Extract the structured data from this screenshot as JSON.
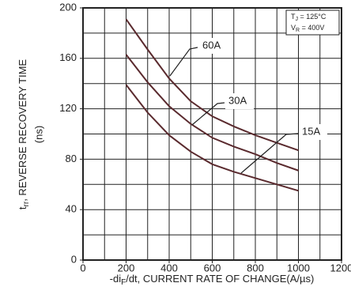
{
  "chart_data": {
    "type": "line",
    "x_label": {
      "pre": "-di",
      "sub": "F",
      "post": "/dt, CURRENT RATE OF CHANGE(A/µs)"
    },
    "y_label": {
      "pre": "t",
      "sub": "rr",
      "post": ", REVERSE RECOVERY TIME",
      "unit": "(ns)"
    },
    "x": [
      200,
      300,
      400,
      500,
      600,
      700,
      800,
      900,
      1000
    ],
    "series": [
      {
        "name": "60A",
        "color": "#5a2a2e",
        "values": [
          191,
          167,
          144,
          126,
          114,
          106,
          99,
          93,
          87
        ]
      },
      {
        "name": "30A",
        "color": "#5a2a2e",
        "values": [
          163,
          141,
          122,
          108,
          97,
          90,
          84,
          77,
          71
        ]
      },
      {
        "name": "15A",
        "color": "#5a2a2e",
        "values": [
          139,
          117,
          99,
          86,
          76,
          70,
          65,
          60,
          55
        ]
      }
    ],
    "conditions": [
      {
        "sym": "T",
        "sub": "J",
        "text": " = 125°C"
      },
      {
        "sym": "V",
        "sub": "R",
        "text": " = 400V"
      }
    ],
    "xlim": [
      0,
      1200
    ],
    "xticks": [
      0,
      200,
      400,
      600,
      800,
      1000,
      1200
    ],
    "ylim": [
      0,
      200
    ],
    "yticks": [
      0,
      40,
      80,
      120,
      160,
      200
    ],
    "xgrid_step": 100,
    "ygrid_step": 20,
    "grid": true
  }
}
